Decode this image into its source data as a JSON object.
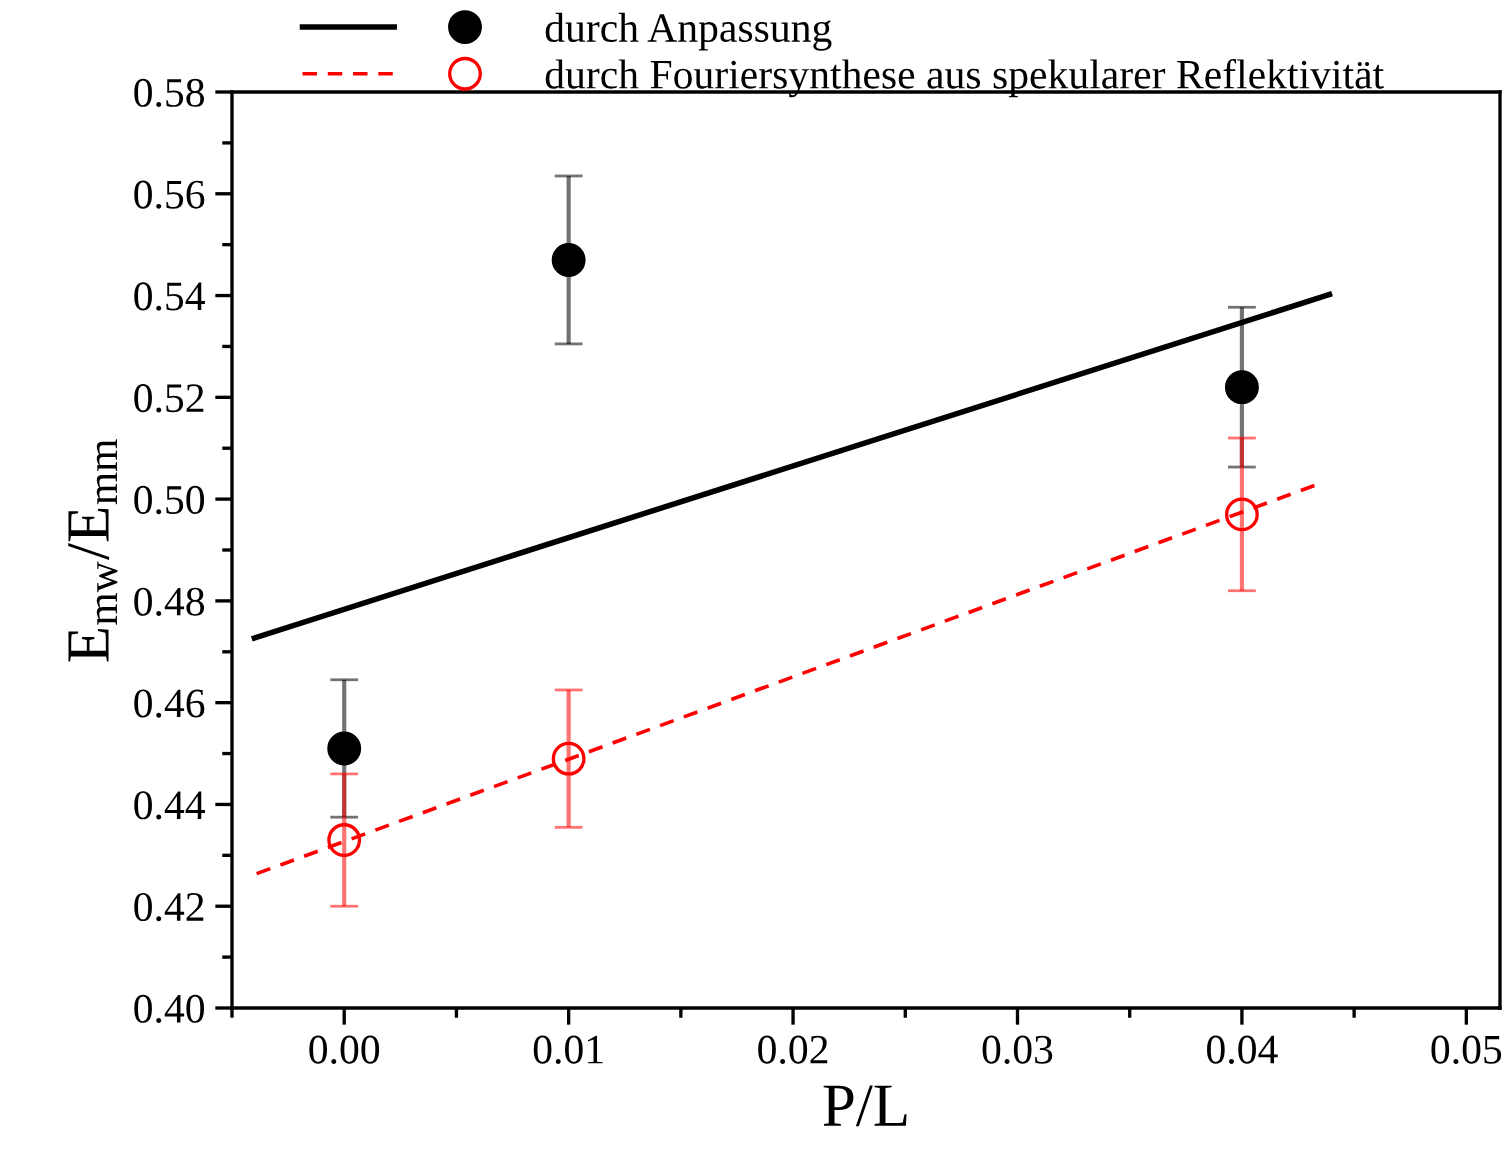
{
  "chart_data": {
    "type": "scatter",
    "xlabel": "P/L",
    "ylabel": "E$_{mw}$/E$_{mm}$",
    "xlim": [
      -0.005,
      0.0515
    ],
    "xticks": [
      {
        "value": 0,
        "label": "0.00"
      },
      0.01,
      0.02,
      0.03,
      0.04,
      0.05
    ],
    "ylim": [
      0.4,
      0.58
    ],
    "yticks": [
      {
        "value": 0.4,
        "label": "0.40"
      },
      0.42,
      0.44,
      0.46,
      0.48,
      {
        "value": 0.5,
        "label": "0.50"
      },
      0.52,
      0.54,
      0.56,
      0.58
    ],
    "grid": false,
    "legend": "top left",
    "series": [
      {
        "name": "durch Anpassung",
        "marker": "circle",
        "color": "#000000",
        "x": [
          0.0,
          0.01,
          0.04
        ],
        "values": [
          0.451,
          0.547,
          0.522
        ],
        "errors": [
          0.0135,
          0.0165,
          0.0157
        ]
      },
      {
        "type": "line",
        "marker": "none",
        "color": "#000000",
        "line_style": "solid",
        "x": [
          -0.004,
          0.0439
        ],
        "values": [
          0.4727,
          0.5402
        ]
      },
      {
        "name": "durch Fouriersynthese aus spekularer Reflektivität",
        "marker": "circle",
        "color": "#ff0000",
        "x": [
          0.0,
          0.01,
          0.04
        ],
        "values": [
          0.433,
          0.449,
          0.497
        ],
        "errors": [
          0.013,
          0.0135,
          0.015
        ]
      },
      {
        "type": "line",
        "marker": "none",
        "color": "#ff0000",
        "line_style": "dashed",
        "x": [
          -0.0039,
          0.0435
        ],
        "values": [
          0.4264,
          0.5031
        ]
      }
    ]
  }
}
